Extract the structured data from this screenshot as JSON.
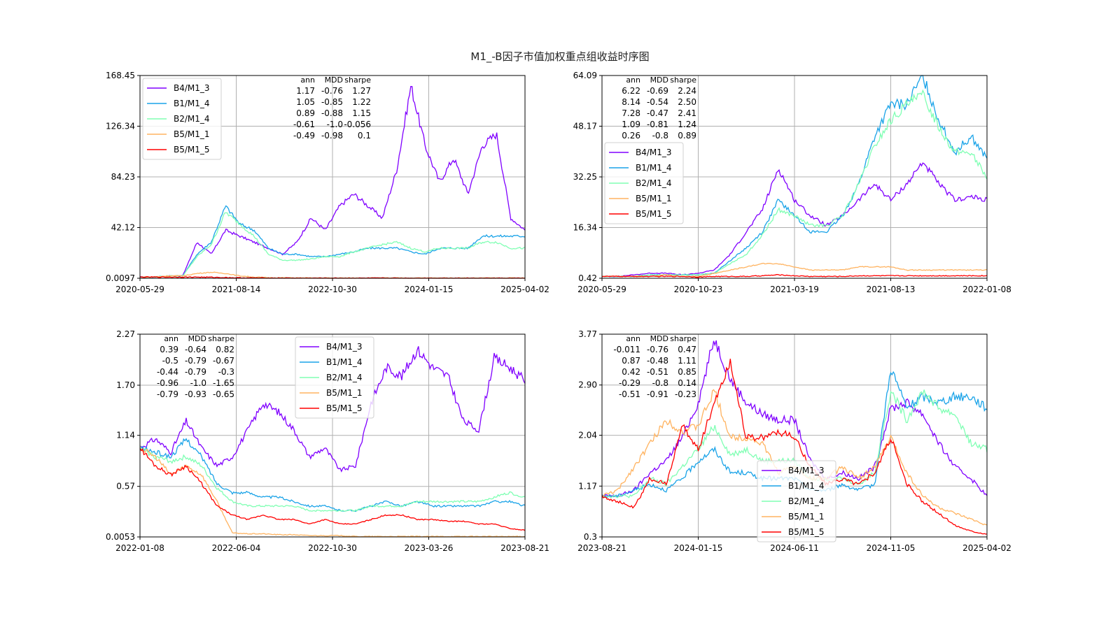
{
  "figure": {
    "title": "M1_-B因子市值加权重点组收益时序图"
  },
  "series_names": [
    "B4/M1_3",
    "B1/M1_4",
    "B2/M1_4",
    "B5/M1_1",
    "B5/M1_5"
  ],
  "series_colors": [
    "#8000ff",
    "#1aa3e8",
    "#80ffb4",
    "#ffb360",
    "#ff0000"
  ],
  "stats_header": [
    "ann",
    "MDD",
    "sharpe"
  ],
  "chart_data": [
    {
      "type": "line",
      "panel": "top-left",
      "title": "",
      "xlabel": "",
      "ylabel": "",
      "grid": true,
      "legend_position": "upper-left",
      "x_tick_labels": [
        "2020-05-29",
        "2021-08-14",
        "2022-10-30",
        "2024-01-15",
        "2025-04-02"
      ],
      "y_ticks": [
        0.0097,
        42.12,
        84.23,
        126.34,
        168.45
      ],
      "y_tick_labels": [
        "0.0097",
        "42.12",
        "84.23",
        "126.34",
        "168.45"
      ],
      "ylim": [
        0.0097,
        168.45
      ],
      "stats": [
        [
          "1.17",
          "-0.76",
          "1.27"
        ],
        [
          "1.05",
          "-0.85",
          "1.22"
        ],
        [
          "0.89",
          "-0.88",
          "1.15"
        ],
        [
          "-0.61",
          "-1.0",
          "-0.056"
        ],
        [
          "-0.49",
          "-0.98",
          "0.1"
        ]
      ],
      "series": [
        {
          "name": "B4/M1_3",
          "values": [
            1,
            1,
            2,
            2,
            30,
            20,
            40,
            35,
            30,
            25,
            20,
            30,
            50,
            40,
            60,
            70,
            60,
            50,
            90,
            160,
            110,
            80,
            100,
            70,
            110,
            120,
            50,
            40
          ]
        },
        {
          "name": "B1/M1_4",
          "values": [
            1,
            1,
            2,
            2,
            20,
            30,
            60,
            45,
            40,
            25,
            20,
            20,
            18,
            18,
            20,
            22,
            25,
            25,
            25,
            22,
            20,
            25,
            25,
            25,
            35,
            35,
            35,
            35
          ]
        },
        {
          "name": "B2/M1_4",
          "values": [
            1,
            1,
            2,
            2,
            18,
            28,
            55,
            45,
            35,
            20,
            15,
            15,
            16,
            18,
            18,
            22,
            25,
            28,
            30,
            25,
            22,
            25,
            25,
            25,
            30,
            30,
            25,
            25
          ]
        },
        {
          "name": "B5/M1_1",
          "values": [
            1,
            1,
            2,
            2,
            4,
            5,
            4,
            2,
            1,
            0.5,
            0.4,
            0.3,
            0.2,
            0.2,
            0.2,
            0.2,
            0.2,
            0.2,
            0.2,
            0.2,
            0.2,
            0.2,
            0.2,
            0.2,
            0.2,
            0.2,
            0.2,
            0.2
          ]
        },
        {
          "name": "B5/M1_5",
          "values": [
            1,
            1,
            1,
            1,
            1,
            0.8,
            0.6,
            0.4,
            0.3,
            0.2,
            0.2,
            0.1,
            0.1,
            0.1,
            0.1,
            0.1,
            0.1,
            0.1,
            0.1,
            0.1,
            0.1,
            0.1,
            0.1,
            0.1,
            0.05,
            0.05,
            0.05,
            0.05
          ]
        }
      ]
    },
    {
      "type": "line",
      "panel": "top-right",
      "title": "",
      "xlabel": "",
      "ylabel": "",
      "grid": true,
      "legend_position": "upper-left",
      "x_tick_labels": [
        "2020-05-29",
        "2020-10-23",
        "2021-03-19",
        "2021-08-13",
        "2022-01-08"
      ],
      "y_ticks": [
        0.42,
        16.34,
        32.25,
        48.17,
        64.09
      ],
      "y_tick_labels": [
        "0.42",
        "16.34",
        "32.25",
        "48.17",
        "64.09"
      ],
      "ylim": [
        0.42,
        64.09
      ],
      "stats": [
        [
          "6.22",
          "-0.69",
          "2.24"
        ],
        [
          "8.14",
          "-0.54",
          "2.50"
        ],
        [
          "7.28",
          "-0.47",
          "2.41"
        ],
        [
          "1.09",
          "-0.81",
          "1.24"
        ],
        [
          "0.26",
          "-0.8",
          "0.89"
        ]
      ],
      "series": [
        {
          "name": "B4/M1_3",
          "values": [
            1,
            1,
            1.5,
            2,
            2,
            1.5,
            2,
            3,
            8,
            15,
            22,
            35,
            25,
            20,
            17,
            20,
            25,
            30,
            25,
            30,
            37,
            30,
            25,
            26,
            25
          ]
        },
        {
          "name": "B1/M1_4",
          "values": [
            1,
            1,
            1,
            1.5,
            1.5,
            1.5,
            1.5,
            2,
            6,
            10,
            15,
            25,
            20,
            15,
            15,
            20,
            30,
            45,
            55,
            55,
            64,
            50,
            40,
            45,
            38
          ]
        },
        {
          "name": "B2/M1_4",
          "values": [
            1,
            1,
            1,
            1.5,
            1.5,
            1.5,
            1.5,
            2,
            5,
            8,
            14,
            22,
            20,
            17,
            17,
            20,
            30,
            42,
            50,
            55,
            58,
            48,
            40,
            40,
            32
          ]
        },
        {
          "name": "B5/M1_1",
          "values": [
            1,
            1,
            1,
            1,
            1.5,
            1,
            1,
            2,
            3,
            4,
            5,
            5,
            4,
            3,
            3,
            3,
            4,
            4,
            4,
            3,
            3,
            3,
            3,
            3,
            3
          ]
        },
        {
          "name": "B5/M1_5",
          "values": [
            1,
            1,
            1,
            1,
            1,
            1,
            0.8,
            1,
            1,
            1,
            1.2,
            1.5,
            1.2,
            1,
            1,
            1,
            1.2,
            1.2,
            1.2,
            1.2,
            1.2,
            1.2,
            1.2,
            1.2,
            1.2
          ]
        }
      ]
    },
    {
      "type": "line",
      "panel": "bottom-left",
      "title": "",
      "xlabel": "",
      "ylabel": "",
      "grid": true,
      "legend_position": "upper-center",
      "x_tick_labels": [
        "2022-01-08",
        "2022-06-04",
        "2022-10-30",
        "2023-03-26",
        "2023-08-21"
      ],
      "y_ticks": [
        0.0053,
        0.57,
        1.14,
        1.7,
        2.27
      ],
      "y_tick_labels": [
        "0.0053",
        "0.57",
        "1.14",
        "1.70",
        "2.27"
      ],
      "ylim": [
        0.0053,
        2.27
      ],
      "stats": [
        [
          "0.39",
          "-0.64",
          "0.82"
        ],
        [
          "-0.5",
          "-0.79",
          "-0.67"
        ],
        [
          "-0.44",
          "-0.79",
          "-0.3"
        ],
        [
          "-0.96",
          "-1.0",
          "-1.65"
        ],
        [
          "-0.79",
          "-0.93",
          "-0.65"
        ]
      ],
      "series": [
        {
          "name": "B4/M1_3",
          "values": [
            1,
            1.1,
            0.95,
            1.3,
            1.0,
            0.8,
            0.9,
            1.2,
            1.5,
            1.4,
            1.2,
            0.9,
            1.0,
            0.75,
            0.8,
            1.5,
            1.9,
            1.8,
            2.1,
            1.9,
            1.8,
            1.3,
            1.2,
            2.0,
            1.9,
            1.75
          ]
        },
        {
          "name": "B1/M1_4",
          "values": [
            1,
            0.95,
            0.9,
            1.1,
            0.9,
            0.6,
            0.5,
            0.5,
            0.45,
            0.45,
            0.4,
            0.35,
            0.35,
            0.3,
            0.3,
            0.35,
            0.4,
            0.35,
            0.4,
            0.35,
            0.35,
            0.35,
            0.35,
            0.4,
            0.4,
            0.35
          ]
        },
        {
          "name": "B2/M1_4",
          "values": [
            1,
            0.9,
            0.85,
            0.9,
            0.8,
            0.55,
            0.4,
            0.35,
            0.35,
            0.35,
            0.35,
            0.3,
            0.3,
            0.3,
            0.3,
            0.35,
            0.35,
            0.35,
            0.4,
            0.4,
            0.4,
            0.4,
            0.4,
            0.45,
            0.5,
            0.45
          ]
        },
        {
          "name": "B5/M1_1",
          "values": [
            1,
            0.9,
            0.7,
            0.8,
            0.7,
            0.4,
            0.05,
            0.04,
            0.04,
            0.03,
            0.03,
            0.02,
            0.02,
            0.02,
            0.01,
            0.01,
            0.01,
            0.01,
            0.01,
            0.01,
            0.01,
            0.01,
            0.01,
            0.01,
            0.01,
            0.01
          ]
        },
        {
          "name": "B5/M1_5",
          "values": [
            1,
            0.8,
            0.7,
            0.8,
            0.6,
            0.35,
            0.25,
            0.2,
            0.25,
            0.2,
            0.2,
            0.15,
            0.2,
            0.15,
            0.15,
            0.2,
            0.25,
            0.25,
            0.2,
            0.2,
            0.18,
            0.18,
            0.15,
            0.15,
            0.1,
            0.08
          ]
        }
      ]
    },
    {
      "type": "line",
      "panel": "bottom-right",
      "title": "",
      "xlabel": "",
      "ylabel": "",
      "grid": true,
      "legend_position": "center-bottom",
      "x_tick_labels": [
        "2023-08-21",
        "2024-01-15",
        "2024-06-11",
        "2024-11-05",
        "2025-04-02"
      ],
      "y_ticks": [
        0.3,
        1.17,
        2.04,
        2.9,
        3.77
      ],
      "y_tick_labels": [
        "0.3",
        "1.17",
        "2.04",
        "2.90",
        "3.77"
      ],
      "ylim": [
        0.3,
        3.77
      ],
      "stats": [
        [
          "-0.011",
          "-0.76",
          "0.47"
        ],
        [
          "0.87",
          "-0.48",
          "1.11"
        ],
        [
          "0.42",
          "-0.51",
          "0.85"
        ],
        [
          "-0.29",
          "-0.8",
          "0.14"
        ],
        [
          "-0.51",
          "-0.91",
          "-0.23"
        ]
      ],
      "series": [
        {
          "name": "B4/M1_3",
          "values": [
            1,
            1,
            1.1,
            1.4,
            1.6,
            2.0,
            2.6,
            3.7,
            3.0,
            2.6,
            2.4,
            2.3,
            2.3,
            1.6,
            1.3,
            1.4,
            1.3,
            1.5,
            2.5,
            2.6,
            2.4,
            1.9,
            1.5,
            1.3,
            1.0
          ]
        },
        {
          "name": "B1/M1_4",
          "values": [
            1,
            1,
            1.1,
            1.2,
            1.1,
            1.3,
            1.6,
            1.8,
            1.4,
            1.4,
            1.3,
            1.3,
            1.3,
            1.1,
            1.1,
            1.2,
            1.1,
            1.2,
            3.2,
            2.5,
            2.7,
            2.6,
            2.7,
            2.7,
            2.5
          ]
        },
        {
          "name": "B2/M1_4",
          "values": [
            1,
            1,
            1.0,
            1.3,
            1.2,
            1.5,
            1.8,
            2.2,
            1.7,
            1.8,
            1.6,
            1.6,
            1.6,
            1.3,
            1.3,
            1.3,
            1.2,
            1.4,
            2.8,
            2.3,
            2.8,
            2.5,
            2.4,
            1.9,
            1.8
          ]
        },
        {
          "name": "B5/M1_1",
          "values": [
            1,
            1.1,
            1.5,
            1.9,
            2.3,
            2.1,
            2.2,
            2.8,
            2.0,
            2.0,
            1.9,
            1.4,
            1.5,
            1.3,
            1.3,
            1.5,
            1.3,
            1.5,
            2.0,
            1.4,
            1.0,
            0.8,
            0.7,
            0.6,
            0.5
          ]
        },
        {
          "name": "B5/M1_5",
          "values": [
            1,
            0.9,
            0.8,
            1.3,
            1.2,
            2.2,
            1.8,
            2.6,
            3.3,
            2.0,
            2.0,
            2.1,
            2.0,
            1.5,
            1.2,
            1.3,
            1.2,
            1.4,
            2.0,
            1.2,
            0.9,
            0.7,
            0.5,
            0.4,
            0.35
          ]
        }
      ]
    }
  ]
}
